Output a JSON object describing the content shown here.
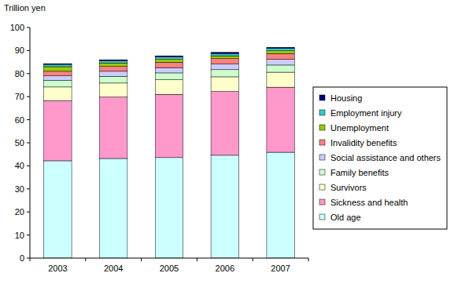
{
  "chart_data": {
    "type": "bar",
    "stacked": true,
    "y_label": "Trillion yen",
    "categories": [
      "2003",
      "2004",
      "2005",
      "2006",
      "2007"
    ],
    "series": [
      {
        "name": "Old age",
        "color": "#ccffff",
        "values": [
          42.2,
          43.2,
          43.6,
          44.6,
          45.9
        ]
      },
      {
        "name": "Sickness and health",
        "color": "#ff99cc",
        "values": [
          26.0,
          26.6,
          27.4,
          27.6,
          28.2
        ]
      },
      {
        "name": "Survivors",
        "color": "#ffffcc",
        "values": [
          6.0,
          6.1,
          6.3,
          6.4,
          6.5
        ]
      },
      {
        "name": "Family benefits",
        "color": "#ccffcc",
        "values": [
          2.8,
          2.9,
          3.0,
          3.1,
          3.1
        ]
      },
      {
        "name": "Social assistance and others",
        "color": "#ccccff",
        "values": [
          2.0,
          2.2,
          2.3,
          2.4,
          2.5
        ]
      },
      {
        "name": "Invalidity benefits",
        "color": "#ff8080",
        "values": [
          2.0,
          2.1,
          2.3,
          2.4,
          2.5
        ]
      },
      {
        "name": "Unemployment",
        "color": "#99cc00",
        "values": [
          2.0,
          1.5,
          1.3,
          1.2,
          1.2
        ]
      },
      {
        "name": "Employment injury",
        "color": "#33cccc",
        "values": [
          1.0,
          1.0,
          1.0,
          1.0,
          1.0
        ]
      },
      {
        "name": "Housing",
        "color": "#000080",
        "values": [
          0.3,
          0.4,
          0.5,
          0.5,
          0.5
        ]
      }
    ],
    "ylim": [
      0,
      100
    ],
    "yticks": [
      0,
      10,
      20,
      30,
      40,
      50,
      60,
      70,
      80,
      90,
      100
    ],
    "grid": false,
    "legend": "right"
  }
}
